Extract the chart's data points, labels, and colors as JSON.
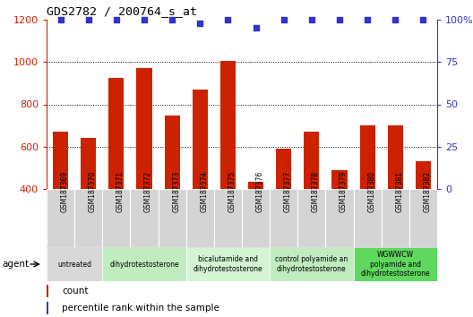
{
  "title": "GDS2782 / 200764_s_at",
  "samples": [
    "GSM187369",
    "GSM187370",
    "GSM187371",
    "GSM187372",
    "GSM187373",
    "GSM187374",
    "GSM187375",
    "GSM187376",
    "GSM187377",
    "GSM187378",
    "GSM187379",
    "GSM187380",
    "GSM187381",
    "GSM187382"
  ],
  "counts": [
    670,
    640,
    925,
    970,
    748,
    870,
    1005,
    435,
    590,
    670,
    490,
    700,
    700,
    530
  ],
  "percentiles": [
    100,
    100,
    100,
    100,
    100,
    98,
    100,
    95,
    100,
    100,
    100,
    100,
    100,
    100
  ],
  "bar_color": "#cc2200",
  "dot_color": "#3333cc",
  "ylim_left": [
    400,
    1200
  ],
  "ylim_right": [
    0,
    100
  ],
  "yticks_left": [
    400,
    600,
    800,
    1000,
    1200
  ],
  "yticks_right": [
    0,
    25,
    50,
    75,
    100
  ],
  "groups": [
    {
      "label": "untreated",
      "indices": [
        0,
        1
      ],
      "color": "#d8d8d8"
    },
    {
      "label": "dihydrotestosterone",
      "indices": [
        2,
        3,
        4
      ],
      "color": "#c0ecc0"
    },
    {
      "label": "bicalutamide and\ndihydrotestosterone",
      "indices": [
        5,
        6,
        7
      ],
      "color": "#d4f4d4"
    },
    {
      "label": "control polyamide an\ndihydrotestosterone",
      "indices": [
        8,
        9,
        10
      ],
      "color": "#c0ecc0"
    },
    {
      "label": "WGWWCW\npolyamide and\ndihydrotestosterone",
      "indices": [
        11,
        12,
        13
      ],
      "color": "#60d860"
    }
  ],
  "legend_count_label": "count",
  "legend_pct_label": "percentile rank within the sample",
  "agent_label": "agent"
}
